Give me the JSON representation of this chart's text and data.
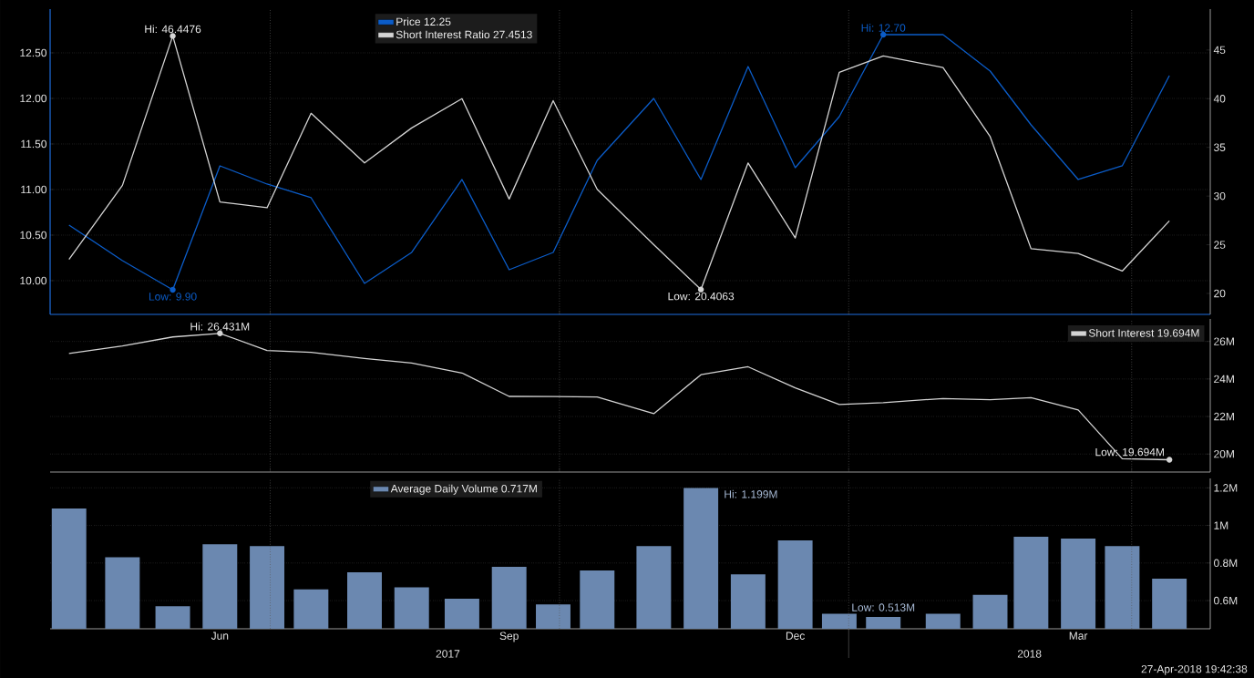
{
  "chart_data": [
    {
      "type": "line",
      "x": [
        "2017-04-28",
        "2017-05-15",
        "2017-05-31",
        "2017-06-15",
        "2017-06-30",
        "2017-07-14",
        "2017-07-31",
        "2017-08-15",
        "2017-08-31",
        "2017-09-15",
        "2017-09-29",
        "2017-10-13",
        "2017-10-31",
        "2017-11-15",
        "2017-11-30",
        "2017-12-15",
        "2017-12-29",
        "2018-01-12",
        "2018-01-31",
        "2018-02-15",
        "2018-02-28",
        "2018-03-15",
        "2018-03-29",
        "2018-04-13"
      ],
      "series": [
        {
          "name": "Price 12.25",
          "color": "#0b5cc8",
          "axis": "y",
          "values": [
            10.61,
            10.22,
            9.9,
            11.26,
            11.06,
            10.91,
            9.97,
            10.31,
            11.11,
            10.12,
            10.31,
            11.32,
            12.0,
            11.11,
            12.35,
            11.24,
            11.8,
            12.7,
            12.7,
            12.3,
            11.71,
            11.11,
            11.26,
            12.25
          ]
        },
        {
          "name": "Short Interest Ratio 27.4513",
          "color": "#d4d4d4",
          "axis": "y2",
          "values": [
            23.5,
            31.1,
            46.4476,
            29.4,
            28.8,
            38.5,
            33.4,
            37.0,
            40.0,
            29.7,
            39.8,
            30.7,
            25.0,
            20.4063,
            33.4,
            25.7,
            42.7,
            44.4,
            43.2,
            36.1,
            24.6,
            24.1,
            22.3,
            27.4513
          ]
        }
      ],
      "xlim": [
        "2017-04-22",
        "2018-04-26"
      ],
      "xticks": [
        {
          "value": "2017-07-01",
          "label": null
        },
        {
          "value": "2017-10-01",
          "label": null
        },
        {
          "value": "2018-01-01",
          "label": null
        },
        {
          "value": "2018-04-01",
          "label": null
        }
      ],
      "ylim": [
        9.63,
        12.98
      ],
      "yticks": [
        {
          "value": 10,
          "label": "10.00"
        },
        {
          "value": 10.5,
          "label": "10.50"
        },
        {
          "value": 11,
          "label": "11.00"
        },
        {
          "value": 11.5,
          "label": "11.50"
        },
        {
          "value": 12,
          "label": "12.00"
        },
        {
          "value": 12.5,
          "label": "12.50"
        }
      ],
      "y2lim": [
        17.85,
        49.2
      ],
      "y2ticks": [
        20,
        25,
        30,
        35,
        40,
        45
      ],
      "tick_labels": "y",
      "grid": true,
      "legend": "top",
      "annotations": [
        "Hi: 46.4476",
        "Low: 20.4063",
        {
          "text": "Low: 9.90",
          "x": "2017-05-31",
          "y": 9.9
        },
        {
          "text": "Hi: 12.70",
          "x": "2018-01-12",
          "y": 12.7
        }
      ]
    },
    {
      "type": "line",
      "x": [
        "2017-04-28",
        "2017-05-15",
        "2017-05-31",
        "2017-06-15",
        "2017-06-30",
        "2017-07-14",
        "2017-07-31",
        "2017-08-15",
        "2017-08-31",
        "2017-09-15",
        "2017-09-29",
        "2017-10-13",
        "2017-10-31",
        "2017-11-15",
        "2017-11-30",
        "2017-12-15",
        "2017-12-29",
        "2018-01-12",
        "2018-01-31",
        "2018-02-15",
        "2018-02-28",
        "2018-03-15",
        "2018-03-29",
        "2018-04-13"
      ],
      "series": [
        {
          "name": "Short Interest 19.694M",
          "color": "#d4d4d4",
          "values": [
            25.36,
            25.76,
            26.24,
            26.431,
            25.52,
            25.42,
            25.09,
            24.85,
            24.32,
            23.07,
            23.06,
            23.04,
            22.15,
            24.23,
            24.65,
            23.53,
            22.64,
            22.74,
            22.96,
            22.89,
            23.0,
            22.35,
            19.75,
            19.694
          ]
        }
      ],
      "xlim": [
        "2017-04-22",
        "2018-04-26"
      ],
      "xticks": [
        {
          "value": "2017-07-01",
          "label": null
        },
        {
          "value": "2017-10-01",
          "label": null
        },
        {
          "value": "2018-01-01",
          "label": null
        },
        {
          "value": "2018-04-01",
          "label": null
        }
      ],
      "ylim": [
        19.04,
        27.2
      ],
      "yticks": [
        {
          "value": 20,
          "label": "20M"
        },
        {
          "value": 22,
          "label": "22M"
        },
        {
          "value": 24,
          "label": "24M"
        },
        {
          "value": 26,
          "label": "26M"
        }
      ],
      "tick_labels": "y",
      "grid": true,
      "legend": "top right",
      "annotations": [
        {
          "text": "Hi: 26.431M",
          "x": "2017-06-15",
          "y": 26.431
        },
        {
          "text": "Low: 19.694M",
          "x": "2018-04-13",
          "y": 19.694
        }
      ]
    },
    {
      "type": "bar",
      "x": [
        "2017-04-28",
        "2017-05-15",
        "2017-05-31",
        "2017-06-15",
        "2017-06-30",
        "2017-07-14",
        "2017-07-31",
        "2017-08-15",
        "2017-08-31",
        "2017-09-15",
        "2017-09-29",
        "2017-10-13",
        "2017-10-31",
        "2017-11-15",
        "2017-11-30",
        "2017-12-15",
        "2017-12-29",
        "2018-01-12",
        "2018-01-31",
        "2018-02-15",
        "2018-02-28",
        "2018-03-15",
        "2018-03-29",
        "2018-04-13"
      ],
      "series": [
        {
          "name": "Average Daily Volume 0.717M",
          "color": "#6b88b0",
          "values": [
            1.09,
            0.83,
            0.57,
            0.9,
            0.89,
            0.66,
            0.75,
            0.67,
            0.61,
            0.78,
            0.58,
            0.76,
            0.89,
            1.199,
            0.74,
            0.92,
            0.53,
            0.513,
            0.53,
            0.63,
            0.94,
            0.93,
            0.89,
            0.717
          ]
        }
      ],
      "xlim": [
        "2017-04-22",
        "2018-04-26"
      ],
      "xticks": [
        {
          "value": "2017-06-15",
          "label": "Jun"
        },
        {
          "value": "2017-07-01",
          "label": null
        },
        {
          "value": "2017-09-15",
          "label": "Sep"
        },
        {
          "value": "2017-10-01",
          "label": null
        },
        {
          "value": "2017-12-15",
          "label": "Dec"
        },
        {
          "value": "2018-01-01",
          "label": null
        },
        {
          "value": "2018-03-15",
          "label": "Mar"
        },
        {
          "value": "2018-04-01",
          "label": null
        }
      ],
      "ylim": [
        0.45,
        1.25
      ],
      "yticks": [
        {
          "value": 0.6,
          "label": "0.6M"
        },
        {
          "value": 0.8,
          "label": "0.8M"
        },
        {
          "value": 1,
          "label": "1M"
        },
        {
          "value": 1.2,
          "label": "1.2M"
        }
      ],
      "grid": true,
      "legend": "top",
      "annotations": [
        {
          "text": "Hi: 1.199M",
          "x": "2017-11-15",
          "y": 1.199
        },
        {
          "text": "Low: 0.513M",
          "x": "2018-01-12",
          "y": 0.513
        },
        "2017",
        "2018",
        "27-Apr-2018 19:42:38"
      ]
    }
  ]
}
